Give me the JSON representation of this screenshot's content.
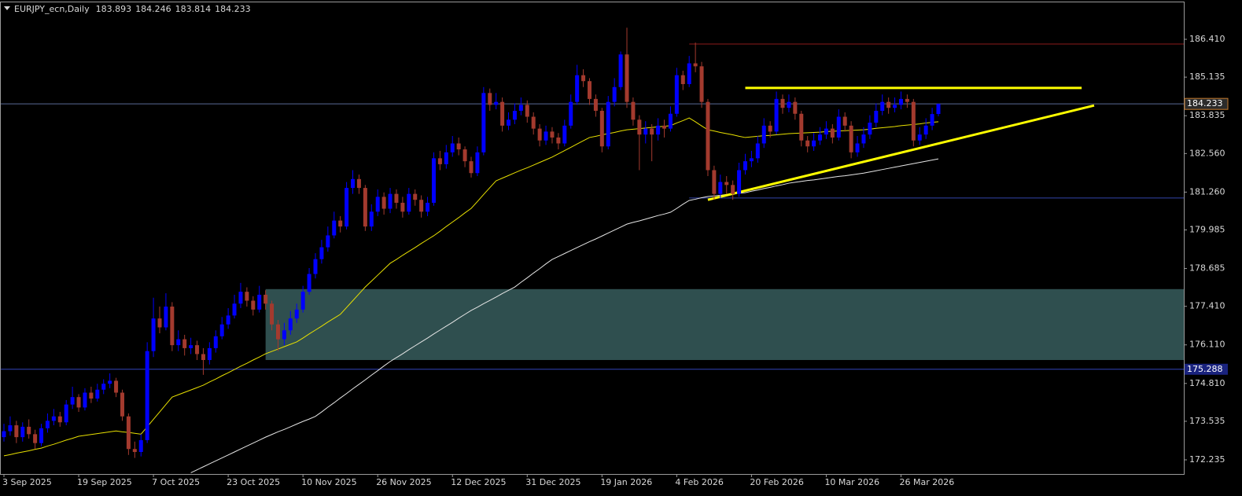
{
  "chart_data": {
    "type": "candlestick",
    "symbol": "EURJPY_ecn,Daily",
    "categories": [
      "3 Sep 2025",
      null,
      null,
      null,
      null,
      null,
      null,
      null,
      null,
      null,
      null,
      null,
      "19 Sep 2025",
      null,
      null,
      null,
      null,
      null,
      null,
      null,
      null,
      null,
      null,
      null,
      "7 Oct 2025",
      null,
      null,
      null,
      null,
      null,
      null,
      null,
      null,
      null,
      null,
      null,
      "23 Oct 2025",
      null,
      null,
      null,
      null,
      null,
      null,
      null,
      null,
      null,
      null,
      null,
      "10 Nov 2025",
      null,
      null,
      null,
      null,
      null,
      null,
      null,
      null,
      null,
      null,
      null,
      "26 Nov 2025",
      null,
      null,
      null,
      null,
      null,
      null,
      null,
      null,
      null,
      null,
      null,
      "12 Dec 2025",
      null,
      null,
      null,
      null,
      null,
      null,
      null,
      null,
      null,
      null,
      null,
      "31 Dec 2025",
      null,
      null,
      null,
      null,
      null,
      null,
      null,
      null,
      null,
      null,
      null,
      "19 Jan 2026",
      null,
      null,
      null,
      null,
      null,
      null,
      null,
      null,
      null,
      null,
      null,
      "4 Feb 2026",
      null,
      null,
      null,
      null,
      null,
      null,
      null,
      null,
      null,
      null,
      null,
      "20 Feb 2026",
      null,
      null,
      null,
      null,
      null,
      null,
      null,
      null,
      null,
      null,
      null,
      "10 Mar 2026",
      null,
      null,
      null,
      null,
      null,
      null,
      null,
      null,
      null,
      null,
      null,
      "26 Mar 2026",
      null,
      null,
      null,
      null,
      null,
      null
    ],
    "open": [
      173.0,
      173.2,
      173.4,
      173.0,
      173.35,
      173.1,
      172.8,
      173.3,
      173.55,
      173.7,
      173.5,
      174.1,
      174.35,
      174.0,
      174.5,
      174.3,
      174.6,
      174.8,
      174.9,
      174.5,
      173.7,
      172.6,
      172.5,
      172.9,
      175.9,
      177.0,
      176.7,
      177.4,
      176.1,
      176.3,
      176.0,
      176.1,
      175.8,
      175.6,
      176.0,
      176.4,
      176.8,
      177.1,
      177.5,
      177.9,
      177.6,
      177.3,
      177.8,
      177.5,
      176.8,
      176.3,
      176.6,
      177.0,
      177.3,
      177.9,
      178.5,
      179.0,
      179.4,
      179.8,
      180.3,
      180.1,
      181.4,
      181.7,
      181.4,
      180.1,
      180.6,
      181.1,
      180.7,
      181.2,
      180.9,
      180.6,
      181.2,
      181.0,
      180.6,
      180.9,
      182.4,
      182.2,
      182.6,
      182.9,
      182.7,
      182.3,
      181.9,
      182.6,
      184.6,
      184.2,
      184.3,
      183.5,
      183.7,
      184.0,
      184.2,
      183.8,
      183.4,
      183.0,
      183.3,
      183.1,
      182.9,
      183.5,
      184.3,
      185.2,
      185.0,
      184.4,
      184.0,
      182.8,
      184.3,
      184.8,
      185.9,
      184.3,
      183.7,
      183.2,
      183.4,
      183.2,
      183.5,
      183.4,
      183.9,
      185.2,
      184.9,
      185.6,
      185.5,
      184.3,
      182.0,
      181.2,
      181.6,
      181.5,
      181.2,
      182.0,
      182.3,
      182.4,
      182.9,
      183.5,
      183.3,
      184.4,
      184.1,
      184.3,
      183.9,
      183.0,
      182.8,
      183.0,
      183.2,
      183.4,
      183.1,
      183.8,
      183.5,
      182.6,
      182.9,
      183.2,
      183.6,
      184.0,
      184.3,
      184.1,
      184.2,
      184.4,
      184.3,
      183.0,
      183.2,
      183.5,
      183.893
    ],
    "high": [
      173.45,
      173.7,
      173.55,
      173.5,
      173.6,
      173.25,
      173.45,
      173.8,
      173.95,
      173.85,
      174.25,
      174.7,
      174.45,
      174.65,
      174.7,
      174.8,
      174.95,
      175.15,
      175.0,
      174.6,
      173.8,
      172.85,
      173.1,
      176.2,
      177.7,
      177.4,
      177.85,
      177.55,
      176.6,
      176.45,
      176.35,
      176.25,
      176.0,
      176.2,
      176.6,
      177.05,
      177.35,
      177.8,
      178.2,
      178.05,
      177.75,
      178.1,
      177.95,
      177.6,
      176.95,
      176.85,
      177.25,
      177.5,
      178.1,
      178.7,
      179.2,
      179.65,
      180.1,
      180.6,
      180.45,
      181.6,
      182.0,
      181.85,
      181.5,
      180.85,
      181.35,
      181.25,
      181.4,
      181.35,
      181.1,
      181.4,
      181.35,
      181.15,
      181.1,
      182.6,
      182.65,
      182.85,
      183.15,
      183.1,
      182.8,
      182.45,
      182.8,
      184.8,
      184.75,
      184.6,
      184.45,
      183.95,
      184.25,
      184.45,
      184.35,
      183.95,
      183.55,
      183.5,
      183.45,
      183.25,
      183.7,
      184.55,
      185.55,
      185.4,
      185.1,
      184.55,
      184.1,
      184.5,
      185.1,
      186.0,
      186.8,
      184.45,
      183.85,
      183.65,
      183.55,
      183.75,
      183.7,
      184.15,
      185.45,
      185.35,
      185.85,
      186.3,
      185.65,
      184.4,
      182.15,
      181.85,
      181.8,
      181.65,
      182.25,
      182.55,
      182.65,
      183.15,
      183.75,
      183.65,
      184.65,
      184.55,
      184.55,
      184.45,
      184.0,
      183.15,
      183.25,
      183.45,
      183.65,
      183.55,
      184.05,
      183.95,
      183.65,
      183.15,
      183.45,
      183.85,
      184.25,
      184.55,
      184.45,
      184.45,
      184.65,
      184.55,
      184.4,
      183.45,
      183.75,
      184.1,
      184.246
    ],
    "low": [
      172.85,
      173.05,
      172.8,
      172.85,
      172.95,
      172.6,
      172.7,
      173.15,
      173.4,
      173.35,
      173.4,
      173.95,
      173.85,
      173.9,
      174.15,
      174.2,
      174.45,
      174.65,
      174.35,
      173.55,
      172.4,
      172.3,
      172.35,
      172.8,
      175.7,
      176.5,
      176.6,
      175.9,
      175.9,
      175.75,
      175.8,
      175.6,
      175.1,
      175.45,
      175.85,
      176.3,
      176.65,
      177.0,
      177.35,
      177.4,
      177.1,
      177.2,
      177.3,
      176.6,
      175.9,
      176.1,
      176.45,
      176.85,
      177.2,
      177.8,
      178.35,
      178.85,
      179.25,
      179.7,
      179.9,
      180.0,
      181.2,
      181.2,
      179.95,
      179.95,
      180.45,
      180.5,
      180.55,
      180.7,
      180.4,
      180.5,
      180.8,
      180.4,
      180.45,
      180.8,
      182.0,
      182.05,
      182.45,
      182.5,
      182.1,
      181.75,
      181.8,
      182.5,
      184.0,
      184.05,
      183.3,
      183.35,
      183.55,
      183.85,
      183.6,
      183.2,
      182.8,
      182.85,
      182.9,
      182.7,
      182.8,
      183.4,
      184.2,
      184.8,
      184.2,
      183.8,
      182.6,
      182.7,
      184.15,
      184.7,
      184.1,
      183.5,
      182.0,
      182.9,
      182.3,
      183.0,
      183.1,
      183.3,
      183.8,
      184.7,
      184.8,
      185.3,
      184.1,
      181.8,
      181.0,
      181.05,
      181.2,
      181.0,
      181.1,
      181.85,
      182.1,
      182.25,
      182.75,
      183.1,
      183.2,
      183.9,
      183.95,
      183.7,
      182.8,
      182.6,
      182.65,
      182.85,
      183.05,
      182.9,
      183.0,
      183.3,
      182.4,
      182.45,
      182.75,
      183.05,
      183.45,
      183.85,
      183.9,
      183.95,
      184.05,
      184.1,
      182.8,
      182.85,
      183.05,
      183.35,
      183.814
    ],
    "close": [
      173.2,
      173.4,
      173.0,
      173.35,
      173.1,
      172.8,
      173.3,
      173.55,
      173.7,
      173.5,
      174.1,
      174.35,
      174.0,
      174.5,
      174.3,
      174.6,
      174.8,
      174.9,
      174.5,
      173.7,
      172.6,
      172.5,
      172.9,
      175.9,
      177.0,
      176.7,
      177.4,
      176.1,
      176.3,
      176.0,
      176.1,
      175.8,
      175.6,
      176.0,
      176.4,
      176.8,
      177.1,
      177.5,
      177.9,
      177.6,
      177.3,
      177.8,
      177.5,
      176.8,
      176.3,
      176.6,
      177.0,
      177.3,
      177.9,
      178.5,
      179.0,
      179.4,
      179.8,
      180.3,
      180.1,
      181.4,
      181.7,
      181.4,
      180.1,
      180.6,
      181.1,
      180.7,
      181.2,
      180.9,
      180.6,
      181.2,
      181.0,
      180.6,
      180.9,
      182.4,
      182.2,
      182.6,
      182.9,
      182.7,
      182.3,
      181.9,
      182.6,
      184.6,
      184.2,
      184.3,
      183.5,
      183.7,
      184.0,
      184.2,
      183.8,
      183.4,
      183.0,
      183.3,
      183.1,
      182.9,
      183.5,
      184.3,
      185.2,
      185.0,
      184.4,
      184.0,
      182.8,
      184.3,
      184.8,
      185.9,
      184.3,
      183.7,
      183.2,
      183.4,
      183.2,
      183.5,
      183.4,
      183.9,
      185.2,
      184.9,
      185.6,
      185.5,
      184.3,
      182.0,
      181.2,
      181.6,
      181.5,
      181.2,
      182.0,
      182.3,
      182.4,
      182.9,
      183.5,
      183.3,
      184.4,
      184.1,
      184.3,
      183.9,
      183.0,
      182.8,
      183.0,
      183.2,
      183.4,
      183.1,
      183.8,
      183.5,
      182.6,
      182.9,
      183.2,
      183.6,
      184.0,
      184.3,
      184.1,
      184.2,
      184.4,
      184.3,
      183.0,
      183.2,
      183.5,
      183.89,
      184.233
    ],
    "up_color": "#0000ff",
    "down_color": "#a33a2e",
    "moving_averages": [
      {
        "color": "#e8e000",
        "values": [
          172.37,
          172.41,
          172.46,
          172.5,
          172.54,
          172.59,
          172.63,
          172.7,
          172.76,
          172.83,
          172.9,
          172.96,
          173.03,
          173.06,
          173.09,
          173.12,
          173.15,
          173.18,
          173.21,
          173.18,
          173.16,
          173.13,
          173.1,
          173.35,
          173.6,
          173.85,
          174.1,
          174.35,
          174.43,
          174.51,
          174.59,
          174.67,
          174.75,
          174.86,
          174.96,
          175.07,
          175.17,
          175.28,
          175.39,
          175.49,
          175.6,
          175.7,
          175.81,
          175.89,
          175.97,
          176.05,
          176.13,
          176.21,
          176.34,
          176.48,
          176.61,
          176.74,
          176.88,
          177.01,
          177.14,
          177.37,
          177.6,
          177.83,
          178.06,
          178.26,
          178.46,
          178.66,
          178.86,
          178.99,
          179.13,
          179.26,
          179.39,
          179.53,
          179.66,
          179.79,
          179.94,
          180.1,
          180.25,
          180.4,
          180.56,
          180.71,
          180.94,
          181.18,
          181.41,
          181.64,
          181.73,
          181.82,
          181.91,
          182.0,
          182.08,
          182.17,
          182.26,
          182.35,
          182.44,
          182.55,
          182.66,
          182.77,
          182.88,
          182.99,
          183.1,
          183.14,
          183.19,
          183.23,
          183.27,
          183.32,
          183.36,
          183.38,
          183.4,
          183.42,
          183.44,
          183.46,
          183.48,
          183.5,
          183.59,
          183.67,
          183.76,
          183.63,
          183.49,
          183.36,
          183.32,
          183.27,
          183.23,
          183.19,
          183.14,
          183.1,
          183.12,
          183.14,
          183.16,
          183.17,
          183.19,
          183.21,
          183.23,
          183.24,
          183.25,
          183.26,
          183.27,
          183.28,
          183.3,
          183.31,
          183.32,
          183.33,
          183.34,
          183.35,
          183.36,
          183.38,
          183.41,
          183.43,
          183.45,
          183.47,
          183.5,
          183.52,
          183.54,
          183.56,
          183.59,
          183.61,
          183.63
        ]
      },
      {
        "color": "#e6e6e6",
        "values": [
          null,
          null,
          null,
          null,
          null,
          null,
          null,
          null,
          null,
          null,
          null,
          null,
          null,
          null,
          null,
          null,
          null,
          null,
          null,
          null,
          null,
          null,
          null,
          null,
          null,
          null,
          null,
          null,
          null,
          null,
          171.8,
          171.9,
          172.0,
          172.1,
          172.2,
          172.3,
          172.4,
          172.5,
          172.6,
          172.7,
          172.8,
          172.9,
          173.0,
          173.09,
          173.18,
          173.26,
          173.35,
          173.44,
          173.53,
          173.61,
          173.7,
          173.85,
          174.01,
          174.16,
          174.32,
          174.47,
          174.63,
          174.78,
          174.93,
          175.09,
          175.24,
          175.4,
          175.55,
          175.68,
          175.81,
          175.95,
          176.08,
          176.21,
          176.34,
          176.48,
          176.61,
          176.74,
          176.87,
          177.01,
          177.14,
          177.27,
          177.38,
          177.5,
          177.61,
          177.72,
          177.84,
          177.95,
          178.06,
          178.22,
          178.37,
          178.53,
          178.68,
          178.84,
          178.99,
          179.09,
          179.19,
          179.29,
          179.39,
          179.49,
          179.59,
          179.68,
          179.78,
          179.88,
          179.98,
          180.08,
          180.18,
          180.24,
          180.29,
          180.35,
          180.41,
          180.47,
          180.52,
          180.58,
          180.71,
          180.85,
          180.98,
          181.02,
          181.07,
          181.11,
          181.13,
          181.15,
          181.18,
          181.2,
          181.22,
          181.24,
          181.29,
          181.33,
          181.38,
          181.42,
          181.47,
          181.51,
          181.56,
          181.59,
          181.62,
          181.65,
          181.67,
          181.7,
          181.73,
          181.76,
          181.79,
          181.81,
          181.84,
          181.87,
          181.9,
          181.94,
          181.98,
          182.02,
          182.06,
          182.1,
          182.14,
          182.18,
          182.22,
          182.26,
          182.3,
          182.34,
          182.38
        ]
      }
    ],
    "zone": {
      "from_index": 42,
      "top": 177.99,
      "bottom": 175.6,
      "color": "#2f4f4f"
    },
    "hlines": [
      {
        "value": 186.25,
        "from_index": 110,
        "color": "#8b1a1a"
      },
      {
        "value": 184.77,
        "from_index": 119,
        "to_index": 173,
        "color": "#ffff00",
        "width": 3
      },
      {
        "value": 181.06,
        "from_index": 110,
        "color": "#3344aa"
      },
      {
        "value": 175.288,
        "color": "#3344bb",
        "price_tag": true
      }
    ],
    "trendline": {
      "from_index": 113,
      "from_value": 181.0,
      "to_index": 175,
      "to_value": 184.18,
      "color": "#ffff00"
    },
    "current_price_color": "#5a6a96",
    "ylim": [
      171.758,
      187.735
    ],
    "yticks": [
      {
        "value": 172.235,
        "label": "172.235"
      },
      {
        "value": 173.535,
        "label": "173.535"
      },
      {
        "value": 174.81,
        "label": "174.810"
      },
      {
        "value": 176.11,
        "label": "176.110"
      },
      {
        "value": 177.41,
        "label": "177.410"
      },
      {
        "value": 178.685,
        "label": "178.685"
      },
      {
        "value": 179.985,
        "label": "179.985"
      },
      {
        "value": 181.26,
        "label": "181.260"
      },
      {
        "value": 182.56,
        "label": "182.560"
      },
      {
        "value": 183.835,
        "label": "183.835"
      },
      {
        "value": 185.135,
        "label": "185.135"
      },
      {
        "value": 186.41,
        "label": "186.410"
      }
    ]
  }
}
